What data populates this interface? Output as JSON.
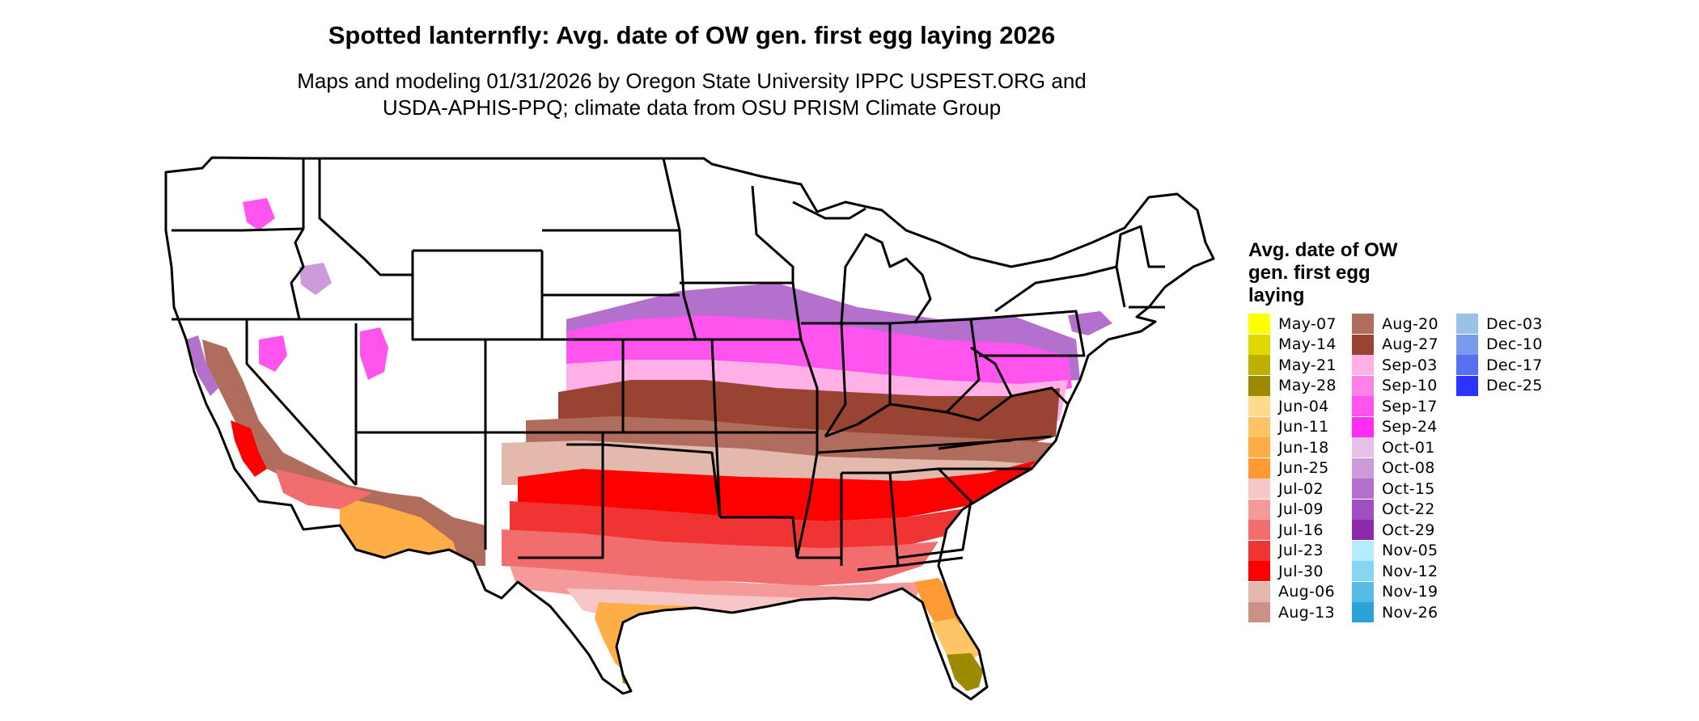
{
  "title": "Spotted lanternfly: Avg. date of OW gen. first egg laying 2026",
  "subtitle_line1": "Maps and modeling 01/31/2026 by Oregon State University IPPC USPEST.ORG and",
  "subtitle_line2": "USDA-APHIS-PPQ; climate data from OSU PRISM Climate Group",
  "legend": {
    "title_line1": "Avg. date of OW",
    "title_line2": "gen. first egg",
    "title_line3": "laying",
    "columns": [
      [
        {
          "label": "May-07",
          "color": "#ffff00"
        },
        {
          "label": "May-14",
          "color": "#e0d800"
        },
        {
          "label": "May-21",
          "color": "#bdb000"
        },
        {
          "label": "May-28",
          "color": "#9c8a00"
        },
        {
          "label": "Jun-04",
          "color": "#ffd98c"
        },
        {
          "label": "Jun-11",
          "color": "#ffc466"
        },
        {
          "label": "Jun-18",
          "color": "#ffad47"
        },
        {
          "label": "Jun-25",
          "color": "#ff9933"
        },
        {
          "label": "Jul-02",
          "color": "#f7c6c6"
        },
        {
          "label": "Jul-09",
          "color": "#f59a9a"
        },
        {
          "label": "Jul-16",
          "color": "#f26d6d"
        },
        {
          "label": "Jul-23",
          "color": "#f03333"
        },
        {
          "label": "Jul-30",
          "color": "#ff0000"
        },
        {
          "label": "Aug-06",
          "color": "#e3b9ad"
        },
        {
          "label": "Aug-13",
          "color": "#cc9186"
        }
      ],
      [
        {
          "label": "Aug-20",
          "color": "#b06c5c"
        },
        {
          "label": "Aug-27",
          "color": "#994433"
        },
        {
          "label": "Sep-03",
          "color": "#ffb0e6"
        },
        {
          "label": "Sep-10",
          "color": "#ff80e6"
        },
        {
          "label": "Sep-17",
          "color": "#ff55ee"
        },
        {
          "label": "Sep-24",
          "color": "#ff2df2"
        },
        {
          "label": "Oct-01",
          "color": "#e6c0e6"
        },
        {
          "label": "Oct-08",
          "color": "#cc99d9"
        },
        {
          "label": "Oct-15",
          "color": "#b370cc"
        },
        {
          "label": "Oct-22",
          "color": "#a050c0"
        },
        {
          "label": "Oct-29",
          "color": "#8c29aa"
        },
        {
          "label": "Nov-05",
          "color": "#b3ebff"
        },
        {
          "label": "Nov-12",
          "color": "#85d6f2"
        },
        {
          "label": "Nov-19",
          "color": "#55bce6"
        },
        {
          "label": "Nov-26",
          "color": "#2aa3d9"
        }
      ],
      [
        {
          "label": "Dec-03",
          "color": "#99c2e6"
        },
        {
          "label": "Dec-10",
          "color": "#7a9aee"
        },
        {
          "label": "Dec-17",
          "color": "#5570f0"
        },
        {
          "label": "Dec-25",
          "color": "#2a33ff"
        }
      ]
    ]
  }
}
